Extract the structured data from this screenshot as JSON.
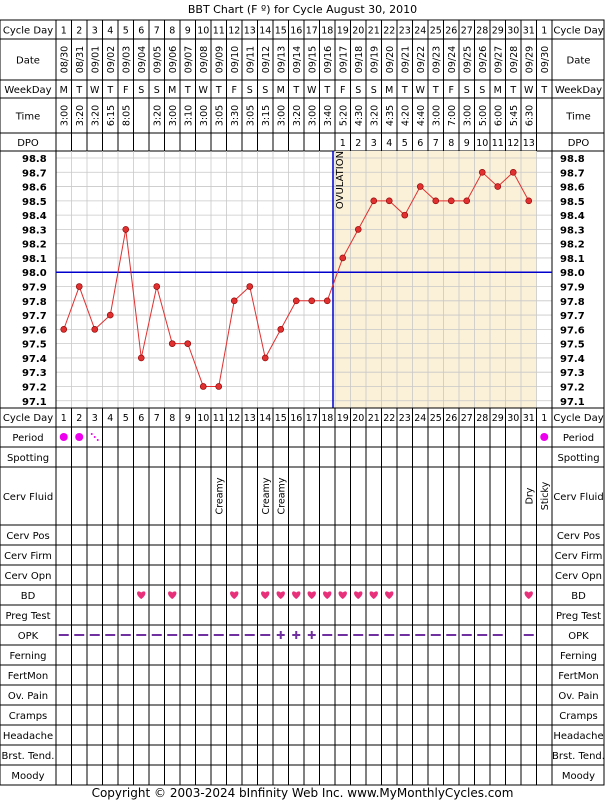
{
  "title": "BBT Chart (F º) for Cycle August 30, 2010",
  "copyright": "Copyright © 2003-2024 bInfinity Web Inc.     www.MyMonthlyCycles.com",
  "row_labels": {
    "cycle_day": "Cycle Day",
    "date": "Date",
    "weekday": "WeekDay",
    "time": "Time",
    "dpo": "DPO"
  },
  "columns": {
    "cycle_day": [
      "1",
      "2",
      "3",
      "4",
      "5",
      "6",
      "7",
      "8",
      "9",
      "10",
      "11",
      "12",
      "13",
      "14",
      "15",
      "16",
      "17",
      "18",
      "19",
      "20",
      "21",
      "22",
      "23",
      "24",
      "25",
      "26",
      "27",
      "28",
      "29",
      "30",
      "31",
      "1"
    ],
    "date": [
      "08/30",
      "08/31",
      "09/01",
      "09/02",
      "09/03",
      "09/04",
      "09/05",
      "09/06",
      "09/07",
      "09/08",
      "09/09",
      "09/10",
      "09/11",
      "09/12",
      "09/13",
      "09/14",
      "09/15",
      "09/16",
      "09/17",
      "09/18",
      "09/19",
      "09/20",
      "09/21",
      "09/22",
      "09/23",
      "09/24",
      "09/25",
      "09/26",
      "09/27",
      "09/28",
      "09/29",
      "09/30"
    ],
    "weekday": [
      "M",
      "T",
      "W",
      "T",
      "F",
      "S",
      "S",
      "M",
      "T",
      "W",
      "T",
      "F",
      "S",
      "S",
      "M",
      "T",
      "W",
      "T",
      "F",
      "S",
      "S",
      "M",
      "T",
      "W",
      "T",
      "F",
      "S",
      "S",
      "M",
      "T",
      "W",
      "T"
    ],
    "time": [
      "3:00",
      "3:20",
      "3:20",
      "6:15",
      "8:05",
      "",
      "3:20",
      "3:00",
      "3:10",
      "3:00",
      "3:05",
      "3:30",
      "3:05",
      "3:15",
      "3:00",
      "3:20",
      "3:00",
      "3:40",
      "5:20",
      "4:30",
      "3:20",
      "4:35",
      "4:20",
      "4:40",
      "3:00",
      "7:00",
      "3:00",
      "5:00",
      "6:00",
      "5:45",
      "6:30",
      ""
    ],
    "dpo": [
      "",
      "",
      "",
      "",
      "",
      "",
      "",
      "",
      "",
      "",
      "",
      "",
      "",
      "",
      "",
      "",
      "",
      "",
      "1",
      "2",
      "3",
      "4",
      "5",
      "6",
      "7",
      "8",
      "9",
      "10",
      "11",
      "12",
      "13",
      ""
    ]
  },
  "temp_axis_labels": [
    "98.8",
    "98.7",
    "98.6",
    "98.5",
    "98.4",
    "98.3",
    "98.2",
    "98.1",
    "98.0",
    "97.9",
    "97.8",
    "97.7",
    "97.6",
    "97.5",
    "97.4",
    "97.3",
    "97.2",
    "97.1"
  ],
  "ovulation_label": "OVULATION",
  "chart_data": {
    "type": "line",
    "title": "BBT Chart (F º) for Cycle August 30, 2010",
    "x": [
      "1",
      "2",
      "3",
      "4",
      "5",
      "6",
      "7",
      "8",
      "9",
      "10",
      "11",
      "12",
      "13",
      "14",
      "15",
      "16",
      "17",
      "18",
      "19",
      "20",
      "21",
      "22",
      "23",
      "24",
      "25",
      "26",
      "27",
      "28",
      "29",
      "30",
      "31"
    ],
    "series": [
      {
        "values": [
          97.6,
          97.9,
          97.6,
          97.7,
          98.3,
          97.4,
          97.9,
          97.5,
          97.5,
          97.2,
          97.2,
          97.8,
          97.9,
          97.4,
          97.6,
          97.8,
          97.8,
          97.8,
          98.1,
          98.3,
          98.5,
          98.5,
          98.4,
          98.6,
          98.5,
          98.5,
          98.5,
          98.7,
          98.6,
          98.7,
          98.5
        ]
      }
    ],
    "ylim": [
      97.1,
      98.8
    ],
    "coverline": 98.0,
    "ovulation_day": 18,
    "colors": {
      "line": "#e03030",
      "point": "#e03030",
      "coverline": "#0000cc",
      "luteal_bg": "#fbf0d8",
      "follicular_bg": "#ffffff"
    }
  },
  "lower_rows": [
    {
      "label": "Period",
      "marks": [
        {
          "col": 1,
          "sym": "dot"
        },
        {
          "col": 2,
          "sym": "dot"
        },
        {
          "col": 3,
          "sym": "spot"
        },
        {
          "col": 32,
          "sym": "dot"
        }
      ]
    },
    {
      "label": "Spotting",
      "marks": []
    },
    {
      "label": "Cerv Fluid",
      "marks": [
        {
          "col": 11,
          "text": "Creamy"
        },
        {
          "col": 14,
          "text": "Creamy"
        },
        {
          "col": 15,
          "text": "Creamy"
        },
        {
          "col": 31,
          "text": "Dry"
        },
        {
          "col": 32,
          "text": "Sticky"
        }
      ]
    },
    {
      "label": "Cerv Pos",
      "marks": []
    },
    {
      "label": "Cerv Firm",
      "marks": []
    },
    {
      "label": "Cerv Opn",
      "marks": []
    },
    {
      "label": "BD",
      "marks": [
        {
          "col": 6,
          "sym": "heart"
        },
        {
          "col": 8,
          "sym": "heart"
        },
        {
          "col": 12,
          "sym": "heart"
        },
        {
          "col": 14,
          "sym": "heart"
        },
        {
          "col": 15,
          "sym": "heart"
        },
        {
          "col": 16,
          "sym": "heart"
        },
        {
          "col": 17,
          "sym": "heart"
        },
        {
          "col": 18,
          "sym": "heart"
        },
        {
          "col": 19,
          "sym": "heart"
        },
        {
          "col": 20,
          "sym": "heart"
        },
        {
          "col": 21,
          "sym": "heart"
        },
        {
          "col": 22,
          "sym": "heart"
        },
        {
          "col": 31,
          "sym": "heart"
        }
      ]
    },
    {
      "label": "Preg Test",
      "marks": []
    },
    {
      "label": "OPK",
      "marks": [
        {
          "col": 1,
          "sym": "minus"
        },
        {
          "col": 2,
          "sym": "minus"
        },
        {
          "col": 3,
          "sym": "minus"
        },
        {
          "col": 4,
          "sym": "minus"
        },
        {
          "col": 5,
          "sym": "minus"
        },
        {
          "col": 6,
          "sym": "minus"
        },
        {
          "col": 7,
          "sym": "minus"
        },
        {
          "col": 8,
          "sym": "minus"
        },
        {
          "col": 9,
          "sym": "minus"
        },
        {
          "col": 10,
          "sym": "minus"
        },
        {
          "col": 11,
          "sym": "minus"
        },
        {
          "col": 12,
          "sym": "minus"
        },
        {
          "col": 13,
          "sym": "minus"
        },
        {
          "col": 14,
          "sym": "minus"
        },
        {
          "col": 15,
          "sym": "plus"
        },
        {
          "col": 16,
          "sym": "plus"
        },
        {
          "col": 17,
          "sym": "plus"
        },
        {
          "col": 18,
          "sym": "minus"
        },
        {
          "col": 19,
          "sym": "minus"
        },
        {
          "col": 20,
          "sym": "minus"
        },
        {
          "col": 21,
          "sym": "minus"
        },
        {
          "col": 22,
          "sym": "minus"
        },
        {
          "col": 23,
          "sym": "minus"
        },
        {
          "col": 24,
          "sym": "minus"
        },
        {
          "col": 25,
          "sym": "minus"
        },
        {
          "col": 26,
          "sym": "minus"
        },
        {
          "col": 27,
          "sym": "minus"
        },
        {
          "col": 28,
          "sym": "minus"
        },
        {
          "col": 29,
          "sym": "minus"
        },
        {
          "col": 31,
          "sym": "minus"
        }
      ]
    },
    {
      "label": "Ferning",
      "marks": []
    },
    {
      "label": "FertMon",
      "marks": []
    },
    {
      "label": "Ov. Pain",
      "marks": []
    },
    {
      "label": "Cramps",
      "marks": []
    },
    {
      "label": "Headache",
      "marks": []
    },
    {
      "label": "Brst. Tend.",
      "marks": []
    },
    {
      "label": "Moody",
      "marks": []
    }
  ],
  "symbol_colors": {
    "period": "#ee00ee",
    "heart": "#e8307a",
    "opk": "#7030a0"
  }
}
